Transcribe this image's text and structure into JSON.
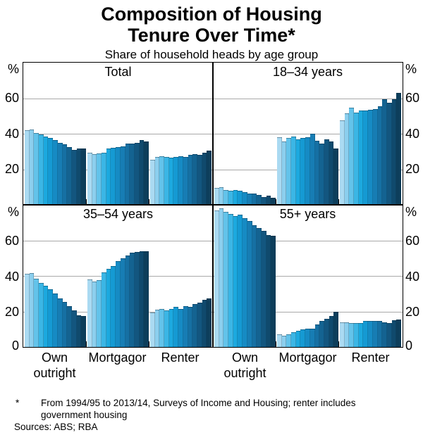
{
  "header": {
    "title_line1": "Composition of Housing",
    "title_line2": "Tenure Over Time*",
    "subtitle": "Share of household heads by age group"
  },
  "axis": {
    "unit": "%",
    "gridline_labels": [
      "60",
      "40",
      "20"
    ],
    "zero_label": "0",
    "ymax": 80
  },
  "category_labels": [
    [
      "Own",
      "outright"
    ],
    [
      "Mortgagor"
    ],
    [
      "Renter"
    ]
  ],
  "bar_colors": [
    "#aadaf2",
    "#8ccfee",
    "#63c3ea",
    "#3bb6e5",
    "#1ca9df",
    "#159ad3",
    "#168bc4",
    "#177db4",
    "#1670a3",
    "#146391",
    "#13567f",
    "#104a6d",
    "#0d3e5b"
  ],
  "chart_data": {
    "type": "bar",
    "unit": "%",
    "ylim": [
      0,
      80
    ],
    "gridlines": [
      20,
      40,
      60
    ],
    "grid": "on",
    "legend": "none",
    "group_categories": [
      "Own outright",
      "Mortgagor",
      "Renter"
    ],
    "bars_per_group_note": "13 bars per group, shaded light-to-dark from 1994/95 to 2013/14",
    "panels": [
      {
        "title": "Total",
        "groups": [
          {
            "category": "Own outright",
            "values": [
              42,
              42.5,
              40.5,
              39.5,
              38.5,
              37.5,
              36.5,
              35,
              34,
              32.5,
              31,
              31.5,
              31.5
            ]
          },
          {
            "category": "Mortgagor",
            "values": [
              29.5,
              28.5,
              29,
              29.5,
              31.5,
              32,
              32.5,
              33,
              34.5,
              34.5,
              35,
              36.5,
              35.5
            ]
          },
          {
            "category": "Renter",
            "values": [
              25.5,
              27,
              27.5,
              27,
              26.5,
              27,
              27.5,
              27,
              28,
              28.5,
              28,
              29.5,
              30.5
            ]
          }
        ]
      },
      {
        "title": "18–34 years",
        "groups": [
          {
            "category": "Own outright",
            "values": [
              9.5,
              10,
              8.5,
              8,
              8.5,
              8,
              7,
              6.5,
              6.5,
              5.5,
              4.5,
              5,
              4
            ]
          },
          {
            "category": "Mortgagor",
            "values": [
              38,
              35.5,
              37.5,
              38.5,
              37,
              37.5,
              38,
              40,
              36,
              34.5,
              37,
              35.5,
              31.5
            ]
          },
          {
            "category": "Renter",
            "values": [
              47.5,
              51.5,
              54.5,
              52,
              53,
              53,
              53.5,
              54,
              55.5,
              59.5,
              57.5,
              59.5,
              63
            ]
          }
        ]
      },
      {
        "title": "35–54 years",
        "groups": [
          {
            "category": "Own outright",
            "values": [
              41,
              41.5,
              38.5,
              36,
              34.5,
              32.5,
              30,
              27.5,
              25.5,
              23,
              20.5,
              18,
              17.5
            ]
          },
          {
            "category": "Mortgagor",
            "values": [
              38,
              37,
              37.5,
              42,
              44,
              45.5,
              48.5,
              50,
              51.5,
              53,
              53.5,
              54,
              54
            ]
          },
          {
            "category": "Renter",
            "values": [
              19.5,
              21,
              21.5,
              20.5,
              21.5,
              22.5,
              21.5,
              23,
              22.5,
              24,
              25,
              26.5,
              27.5
            ]
          }
        ]
      },
      {
        "title": "55+ years",
        "groups": [
          {
            "category": "Own outright",
            "values": [
              77,
              78,
              76,
              75,
              73.5,
              74.5,
              72.5,
              71,
              68.5,
              67,
              65.5,
              63,
              62.5
            ]
          },
          {
            "category": "Mortgagor",
            "values": [
              7,
              6.5,
              7,
              8.5,
              9,
              10,
              10.5,
              10.5,
              12.5,
              14.5,
              16,
              17.5,
              20
            ]
          },
          {
            "category": "Renter",
            "values": [
              14,
              14,
              13.5,
              13.5,
              13.5,
              14.5,
              14.5,
              14.5,
              14.5,
              14,
              13.5,
              15,
              15.5
            ]
          }
        ]
      }
    ]
  },
  "footnote": {
    "marker": "*",
    "text": "From 1994/95 to 2013/14, Surveys of Income and Housing; renter includes government housing",
    "sources": "Sources: ABS; RBA"
  }
}
